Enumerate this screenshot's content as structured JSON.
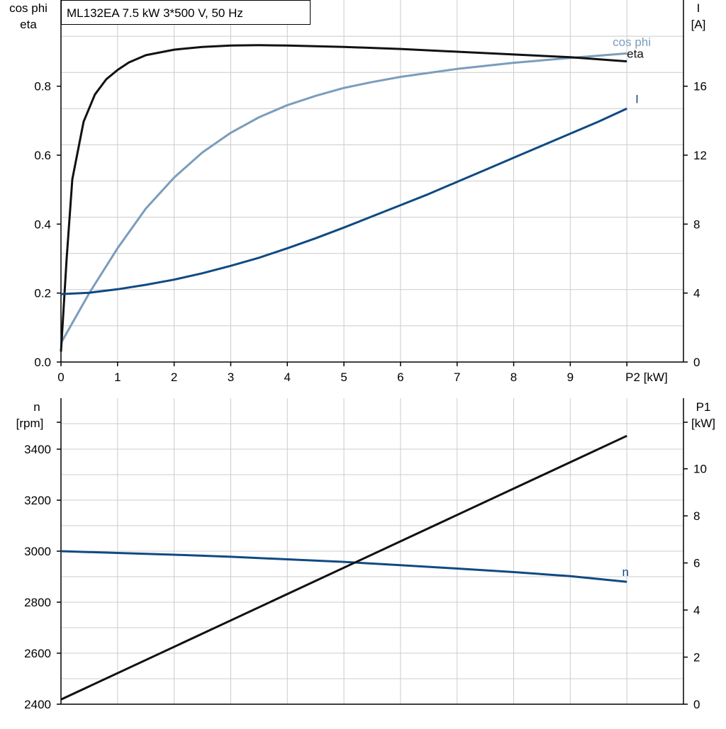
{
  "chart_data": [
    {
      "type": "line",
      "title": "ML132EA   7.5 kW   3*500 V, 50 Hz",
      "ylabel_left": [
        "cos phi",
        "eta"
      ],
      "ylabel_right": [
        "I",
        "[A]"
      ],
      "xlabel": "P2 [kW]",
      "xlim": [
        0,
        11
      ],
      "x_ticks": [
        "0",
        "1",
        "2",
        "3",
        "4",
        "5",
        "6",
        "7",
        "8",
        "9"
      ],
      "ylim_left": [
        0,
        1.05
      ],
      "y_left_ticks": [
        "0.0",
        "0.2",
        "0.4",
        "0.6",
        "0.8"
      ],
      "ylim_right": [
        0,
        21
      ],
      "y_right_ticks": [
        "0",
        "4",
        "8",
        "12",
        "16"
      ],
      "grid": true,
      "colors": {
        "eta": "#111111",
        "cos_phi": "#7a9dbd",
        "I": "#0f4a82",
        "grid": "#cccccc",
        "axis": "#000000"
      },
      "series": [
        {
          "name": "eta",
          "axis": "left",
          "x": [
            0,
            0.1,
            0.2,
            0.4,
            0.6,
            0.8,
            1.0,
            1.2,
            1.5,
            2.0,
            2.5,
            3.0,
            3.5,
            4.0,
            5.0,
            6.0,
            7.0,
            8.0,
            9.0,
            10.0
          ],
          "y": [
            0.03,
            0.3,
            0.53,
            0.697,
            0.776,
            0.82,
            0.847,
            0.869,
            0.89,
            0.906,
            0.914,
            0.918,
            0.919,
            0.918,
            0.914,
            0.908,
            0.9,
            0.892,
            0.884,
            0.872
          ]
        },
        {
          "name": "cos phi",
          "axis": "left",
          "x": [
            0,
            0.5,
            1.0,
            1.5,
            2.0,
            2.5,
            3.0,
            3.5,
            4.0,
            4.5,
            5.0,
            5.5,
            6.0,
            7.0,
            8.0,
            9.0,
            10.0
          ],
          "y": [
            0.055,
            0.2,
            0.33,
            0.445,
            0.535,
            0.608,
            0.665,
            0.71,
            0.745,
            0.772,
            0.795,
            0.812,
            0.827,
            0.85,
            0.868,
            0.882,
            0.895
          ]
        },
        {
          "name": "I",
          "axis": "right",
          "x": [
            0,
            0.5,
            1.0,
            1.5,
            2.0,
            2.5,
            3.0,
            3.5,
            4.0,
            4.5,
            5.0,
            5.5,
            6.0,
            6.5,
            7.0,
            7.5,
            8.0,
            8.5,
            9.0,
            9.5,
            10.0
          ],
          "y": [
            3.94,
            4.02,
            4.22,
            4.48,
            4.78,
            5.15,
            5.58,
            6.05,
            6.6,
            7.18,
            7.8,
            8.45,
            9.1,
            9.75,
            10.45,
            11.15,
            11.85,
            12.55,
            13.25,
            13.95,
            14.7
          ]
        }
      ]
    },
    {
      "type": "line",
      "ylabel_left": [
        "n",
        "[rpm]"
      ],
      "ylabel_right": [
        "P1",
        "[kW]"
      ],
      "xlim": [
        0,
        11
      ],
      "ylim_left": [
        2400,
        3600
      ],
      "y_left_ticks": [
        "2400",
        "2600",
        "2800",
        "3000",
        "3200",
        "3400"
      ],
      "ylim_right": [
        0,
        13
      ],
      "y_right_ticks": [
        "0",
        "2",
        "4",
        "6",
        "8",
        "10"
      ],
      "grid": true,
      "colors": {
        "n": "#0f4a82",
        "P1": "#111111",
        "grid": "#cccccc",
        "axis": "#000000"
      },
      "series": [
        {
          "name": "n",
          "axis": "left",
          "x": [
            0,
            1,
            2,
            3,
            4,
            5,
            6,
            7,
            8,
            9,
            10
          ],
          "y": [
            3000,
            2993,
            2986,
            2978,
            2968,
            2958,
            2945,
            2932,
            2918,
            2902,
            2880
          ]
        },
        {
          "name": "",
          "axis": "right",
          "x": [
            0,
            10
          ],
          "y": [
            0.2,
            11.4
          ]
        }
      ]
    }
  ]
}
